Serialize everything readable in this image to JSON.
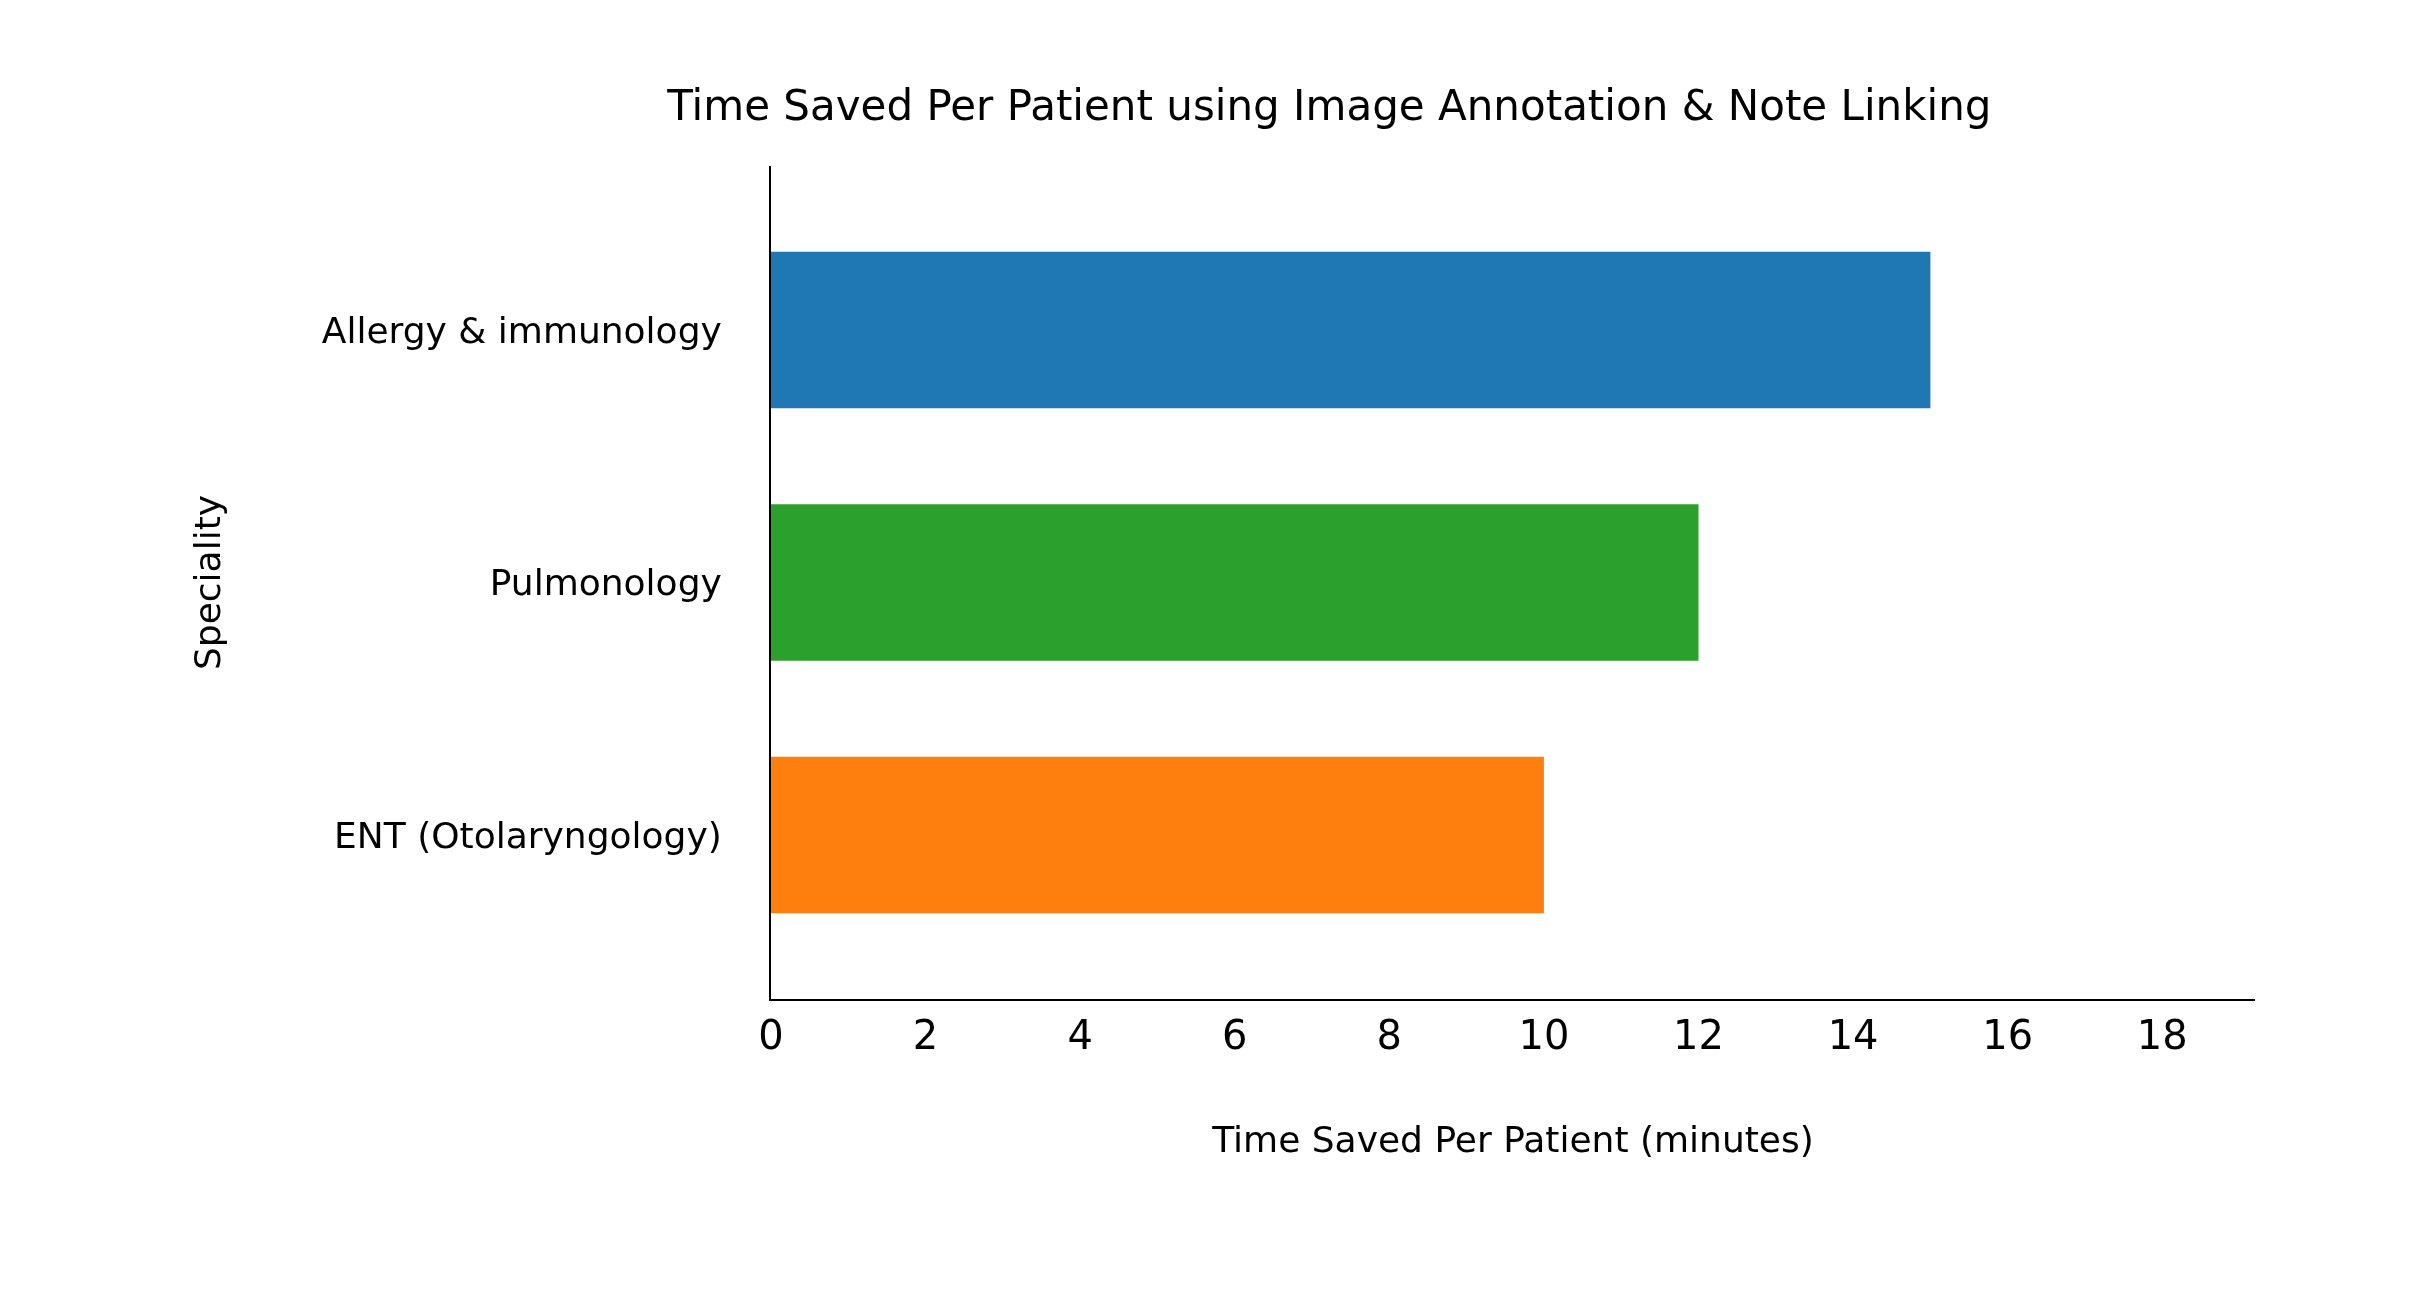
{
  "chart_data": {
    "type": "bar",
    "orientation": "horizontal",
    "title": "Time Saved Per Patient using Image Annotation & Note Linking",
    "categories": [
      "Allergy & immunology",
      "Pulmonology",
      "ENT (Otolaryngology)"
    ],
    "values": [
      15,
      12,
      10
    ],
    "colors": [
      "#1f77b4",
      "#2ca02c",
      "#ff7f0e"
    ],
    "xlabel": "Time Saved Per Patient (minutes)",
    "ylabel": "Speciality",
    "xlim": [
      0,
      19.2
    ],
    "xticks": [
      0,
      2,
      4,
      6,
      8,
      10,
      12,
      14,
      16,
      18
    ]
  }
}
